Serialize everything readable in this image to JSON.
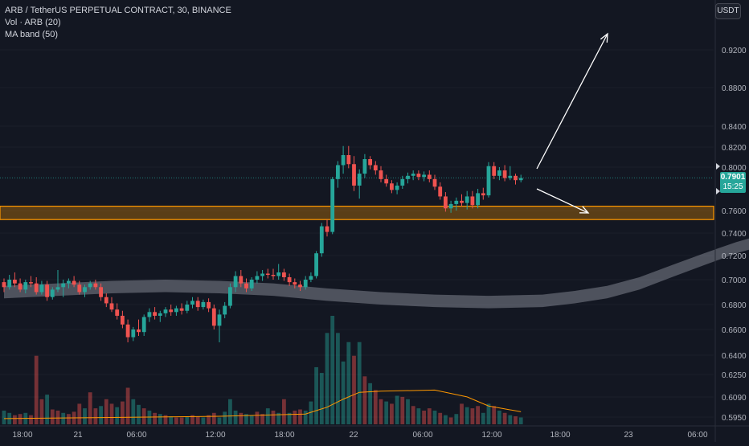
{
  "legend": {
    "symbol": "ARB / TetherUS PERPETUAL CONTRACT, 30, BINANCE",
    "vol": "Vol · ARB (20)",
    "ma_band": "MA band (50)"
  },
  "currency_button": "USDT",
  "last_price": {
    "value": "0.7901",
    "countdown": "15:25"
  },
  "colors": {
    "background": "#131722",
    "up": "#26a69a",
    "down": "#ef5350",
    "zone": "#ff9800",
    "ma_band": "#b0b3bd",
    "vol_ma": "#ff9800"
  },
  "chart_data": {
    "type": "candlestick",
    "y_ticks": [
      "0.9200",
      "0.8800",
      "0.8400",
      "0.8200",
      "0.8000",
      "0.7600",
      "0.7400",
      "0.7200",
      "0.7000",
      "0.6800",
      "0.6600",
      "0.6400",
      "0.6250",
      "0.6090",
      "0.5950"
    ],
    "x_ticks": [
      "18:00",
      "21",
      "06:00",
      "12:00",
      "18:00",
      "22",
      "06:00",
      "12:00",
      "18:00",
      "23",
      "06:00"
    ],
    "support_zone": [
      0.752,
      0.764
    ],
    "ma_band_points": [
      [
        0,
        0.69
      ],
      [
        10,
        0.692
      ],
      [
        20,
        0.694
      ],
      [
        30,
        0.695
      ],
      [
        40,
        0.694
      ],
      [
        50,
        0.692
      ],
      [
        60,
        0.688
      ],
      [
        70,
        0.685
      ],
      [
        80,
        0.683
      ],
      [
        90,
        0.682
      ],
      [
        100,
        0.683
      ],
      [
        106,
        0.686
      ],
      [
        112,
        0.69
      ],
      [
        118,
        0.697
      ],
      [
        124,
        0.707
      ],
      [
        130,
        0.717
      ],
      [
        136,
        0.727
      ],
      [
        142,
        0.735
      ],
      [
        148,
        0.741
      ],
      [
        154,
        0.745
      ],
      [
        160,
        0.748
      ],
      [
        166,
        0.752
      ],
      [
        170,
        0.755
      ],
      [
        174,
        0.76
      ],
      [
        178,
        0.764
      ]
    ],
    "ma_band_width": 0.01,
    "candles": [
      {
        "i": 0,
        "o": 0.698,
        "h": 0.701,
        "l": 0.69,
        "c": 0.694
      },
      {
        "i": 1,
        "o": 0.694,
        "h": 0.704,
        "l": 0.692,
        "c": 0.7
      },
      {
        "i": 2,
        "o": 0.7,
        "h": 0.706,
        "l": 0.694,
        "c": 0.697
      },
      {
        "i": 3,
        "o": 0.697,
        "h": 0.701,
        "l": 0.69,
        "c": 0.692
      },
      {
        "i": 4,
        "o": 0.692,
        "h": 0.7,
        "l": 0.689,
        "c": 0.698
      },
      {
        "i": 5,
        "o": 0.698,
        "h": 0.703,
        "l": 0.694,
        "c": 0.697
      },
      {
        "i": 6,
        "o": 0.697,
        "h": 0.702,
        "l": 0.688,
        "c": 0.69
      },
      {
        "i": 7,
        "o": 0.69,
        "h": 0.699,
        "l": 0.688,
        "c": 0.696
      },
      {
        "i": 8,
        "o": 0.696,
        "h": 0.699,
        "l": 0.683,
        "c": 0.686
      },
      {
        "i": 9,
        "o": 0.686,
        "h": 0.694,
        "l": 0.684,
        "c": 0.692
      },
      {
        "i": 10,
        "o": 0.692,
        "h": 0.708,
        "l": 0.69,
        "c": 0.694
      },
      {
        "i": 11,
        "o": 0.694,
        "h": 0.7,
        "l": 0.686,
        "c": 0.697
      },
      {
        "i": 12,
        "o": 0.697,
        "h": 0.701,
        "l": 0.693,
        "c": 0.699
      },
      {
        "i": 13,
        "o": 0.699,
        "h": 0.703,
        "l": 0.694,
        "c": 0.696
      },
      {
        "i": 14,
        "o": 0.696,
        "h": 0.699,
        "l": 0.688,
        "c": 0.69
      },
      {
        "i": 15,
        "o": 0.69,
        "h": 0.696,
        "l": 0.686,
        "c": 0.694
      },
      {
        "i": 16,
        "o": 0.694,
        "h": 0.699,
        "l": 0.692,
        "c": 0.697
      },
      {
        "i": 17,
        "o": 0.697,
        "h": 0.7,
        "l": 0.692,
        "c": 0.694
      },
      {
        "i": 18,
        "o": 0.694,
        "h": 0.697,
        "l": 0.683,
        "c": 0.686
      },
      {
        "i": 19,
        "o": 0.686,
        "h": 0.689,
        "l": 0.678,
        "c": 0.681
      },
      {
        "i": 20,
        "o": 0.681,
        "h": 0.686,
        "l": 0.674,
        "c": 0.676
      },
      {
        "i": 21,
        "o": 0.676,
        "h": 0.681,
        "l": 0.668,
        "c": 0.671
      },
      {
        "i": 22,
        "o": 0.671,
        "h": 0.675,
        "l": 0.661,
        "c": 0.664
      },
      {
        "i": 23,
        "o": 0.664,
        "h": 0.668,
        "l": 0.65,
        "c": 0.654
      },
      {
        "i": 24,
        "o": 0.654,
        "h": 0.662,
        "l": 0.651,
        "c": 0.66
      },
      {
        "i": 25,
        "o": 0.66,
        "h": 0.668,
        "l": 0.655,
        "c": 0.658
      },
      {
        "i": 26,
        "o": 0.658,
        "h": 0.672,
        "l": 0.655,
        "c": 0.67
      },
      {
        "i": 27,
        "o": 0.67,
        "h": 0.677,
        "l": 0.666,
        "c": 0.674
      },
      {
        "i": 28,
        "o": 0.674,
        "h": 0.678,
        "l": 0.668,
        "c": 0.671
      },
      {
        "i": 29,
        "o": 0.671,
        "h": 0.675,
        "l": 0.666,
        "c": 0.673
      },
      {
        "i": 30,
        "o": 0.673,
        "h": 0.678,
        "l": 0.67,
        "c": 0.676
      },
      {
        "i": 31,
        "o": 0.676,
        "h": 0.68,
        "l": 0.671,
        "c": 0.674
      },
      {
        "i": 32,
        "o": 0.674,
        "h": 0.679,
        "l": 0.671,
        "c": 0.677
      },
      {
        "i": 33,
        "o": 0.677,
        "h": 0.681,
        "l": 0.672,
        "c": 0.675
      },
      {
        "i": 34,
        "o": 0.675,
        "h": 0.683,
        "l": 0.673,
        "c": 0.68
      },
      {
        "i": 35,
        "o": 0.68,
        "h": 0.686,
        "l": 0.677,
        "c": 0.683
      },
      {
        "i": 36,
        "o": 0.683,
        "h": 0.686,
        "l": 0.675,
        "c": 0.678
      },
      {
        "i": 37,
        "o": 0.678,
        "h": 0.684,
        "l": 0.676,
        "c": 0.682
      },
      {
        "i": 38,
        "o": 0.682,
        "h": 0.685,
        "l": 0.674,
        "c": 0.677
      },
      {
        "i": 39,
        "o": 0.677,
        "h": 0.68,
        "l": 0.66,
        "c": 0.663
      },
      {
        "i": 40,
        "o": 0.663,
        "h": 0.676,
        "l": 0.65,
        "c": 0.672
      },
      {
        "i": 41,
        "o": 0.672,
        "h": 0.682,
        "l": 0.669,
        "c": 0.679
      },
      {
        "i": 42,
        "o": 0.679,
        "h": 0.697,
        "l": 0.677,
        "c": 0.694
      },
      {
        "i": 43,
        "o": 0.694,
        "h": 0.707,
        "l": 0.69,
        "c": 0.703
      },
      {
        "i": 44,
        "o": 0.703,
        "h": 0.708,
        "l": 0.694,
        "c": 0.697
      },
      {
        "i": 45,
        "o": 0.697,
        "h": 0.701,
        "l": 0.69,
        "c": 0.693
      },
      {
        "i": 46,
        "o": 0.693,
        "h": 0.702,
        "l": 0.691,
        "c": 0.7
      },
      {
        "i": 47,
        "o": 0.7,
        "h": 0.707,
        "l": 0.697,
        "c": 0.703
      },
      {
        "i": 48,
        "o": 0.703,
        "h": 0.708,
        "l": 0.699,
        "c": 0.705
      },
      {
        "i": 49,
        "o": 0.705,
        "h": 0.709,
        "l": 0.701,
        "c": 0.704
      },
      {
        "i": 50,
        "o": 0.704,
        "h": 0.709,
        "l": 0.7,
        "c": 0.703
      },
      {
        "i": 51,
        "o": 0.703,
        "h": 0.713,
        "l": 0.7,
        "c": 0.706
      },
      {
        "i": 52,
        "o": 0.706,
        "h": 0.709,
        "l": 0.699,
        "c": 0.702
      },
      {
        "i": 53,
        "o": 0.702,
        "h": 0.705,
        "l": 0.695,
        "c": 0.698
      },
      {
        "i": 54,
        "o": 0.698,
        "h": 0.701,
        "l": 0.693,
        "c": 0.696
      },
      {
        "i": 55,
        "o": 0.696,
        "h": 0.699,
        "l": 0.691,
        "c": 0.694
      },
      {
        "i": 56,
        "o": 0.694,
        "h": 0.703,
        "l": 0.692,
        "c": 0.7
      },
      {
        "i": 57,
        "o": 0.7,
        "h": 0.706,
        "l": 0.698,
        "c": 0.703
      },
      {
        "i": 58,
        "o": 0.703,
        "h": 0.724,
        "l": 0.701,
        "c": 0.722
      },
      {
        "i": 59,
        "o": 0.722,
        "h": 0.749,
        "l": 0.719,
        "c": 0.746
      },
      {
        "i": 60,
        "o": 0.746,
        "h": 0.752,
        "l": 0.737,
        "c": 0.741
      },
      {
        "i": 61,
        "o": 0.741,
        "h": 0.791,
        "l": 0.739,
        "c": 0.789
      },
      {
        "i": 62,
        "o": 0.789,
        "h": 0.806,
        "l": 0.781,
        "c": 0.802
      },
      {
        "i": 63,
        "o": 0.802,
        "h": 0.821,
        "l": 0.794,
        "c": 0.812
      },
      {
        "i": 64,
        "o": 0.812,
        "h": 0.821,
        "l": 0.799,
        "c": 0.803
      },
      {
        "i": 65,
        "o": 0.803,
        "h": 0.811,
        "l": 0.778,
        "c": 0.783
      },
      {
        "i": 66,
        "o": 0.783,
        "h": 0.798,
        "l": 0.771,
        "c": 0.794
      },
      {
        "i": 67,
        "o": 0.794,
        "h": 0.813,
        "l": 0.79,
        "c": 0.808
      },
      {
        "i": 68,
        "o": 0.808,
        "h": 0.811,
        "l": 0.798,
        "c": 0.802
      },
      {
        "i": 69,
        "o": 0.802,
        "h": 0.806,
        "l": 0.793,
        "c": 0.797
      },
      {
        "i": 70,
        "o": 0.797,
        "h": 0.801,
        "l": 0.786,
        "c": 0.789
      },
      {
        "i": 71,
        "o": 0.789,
        "h": 0.793,
        "l": 0.782,
        "c": 0.785
      },
      {
        "i": 72,
        "o": 0.785,
        "h": 0.788,
        "l": 0.776,
        "c": 0.779
      },
      {
        "i": 73,
        "o": 0.779,
        "h": 0.786,
        "l": 0.775,
        "c": 0.783
      },
      {
        "i": 74,
        "o": 0.783,
        "h": 0.792,
        "l": 0.78,
        "c": 0.789
      },
      {
        "i": 75,
        "o": 0.789,
        "h": 0.795,
        "l": 0.785,
        "c": 0.792
      },
      {
        "i": 76,
        "o": 0.792,
        "h": 0.797,
        "l": 0.788,
        "c": 0.794
      },
      {
        "i": 77,
        "o": 0.794,
        "h": 0.797,
        "l": 0.788,
        "c": 0.791
      },
      {
        "i": 78,
        "o": 0.791,
        "h": 0.796,
        "l": 0.787,
        "c": 0.793
      },
      {
        "i": 79,
        "o": 0.793,
        "h": 0.797,
        "l": 0.786,
        "c": 0.789
      },
      {
        "i": 80,
        "o": 0.789,
        "h": 0.793,
        "l": 0.779,
        "c": 0.782
      },
      {
        "i": 81,
        "o": 0.782,
        "h": 0.786,
        "l": 0.77,
        "c": 0.773
      },
      {
        "i": 82,
        "o": 0.773,
        "h": 0.777,
        "l": 0.759,
        "c": 0.762
      },
      {
        "i": 83,
        "o": 0.762,
        "h": 0.769,
        "l": 0.758,
        "c": 0.766
      },
      {
        "i": 84,
        "o": 0.766,
        "h": 0.772,
        "l": 0.76,
        "c": 0.769
      },
      {
        "i": 85,
        "o": 0.769,
        "h": 0.775,
        "l": 0.764,
        "c": 0.767
      },
      {
        "i": 86,
        "o": 0.767,
        "h": 0.778,
        "l": 0.761,
        "c": 0.773
      },
      {
        "i": 87,
        "o": 0.773,
        "h": 0.778,
        "l": 0.762,
        "c": 0.765
      },
      {
        "i": 88,
        "o": 0.765,
        "h": 0.78,
        "l": 0.762,
        "c": 0.776
      },
      {
        "i": 89,
        "o": 0.776,
        "h": 0.781,
        "l": 0.77,
        "c": 0.774
      },
      {
        "i": 90,
        "o": 0.774,
        "h": 0.805,
        "l": 0.772,
        "c": 0.801
      },
      {
        "i": 91,
        "o": 0.801,
        "h": 0.805,
        "l": 0.789,
        "c": 0.792
      },
      {
        "i": 92,
        "o": 0.792,
        "h": 0.8,
        "l": 0.788,
        "c": 0.797
      },
      {
        "i": 93,
        "o": 0.797,
        "h": 0.802,
        "l": 0.787,
        "c": 0.79
      },
      {
        "i": 94,
        "o": 0.79,
        "h": 0.801,
        "l": 0.788,
        "c": 0.792
      },
      {
        "i": 95,
        "o": 0.792,
        "h": 0.794,
        "l": 0.784,
        "c": 0.788
      },
      {
        "i": 96,
        "o": 0.788,
        "h": 0.793,
        "l": 0.786,
        "c": 0.79
      }
    ],
    "volumes": [
      [
        0,
        1,
        12
      ],
      [
        1,
        1,
        10
      ],
      [
        2,
        0,
        8
      ],
      [
        3,
        0,
        9
      ],
      [
        4,
        1,
        10
      ],
      [
        5,
        0,
        8
      ],
      [
        6,
        0,
        60
      ],
      [
        7,
        0,
        22
      ],
      [
        8,
        1,
        26
      ],
      [
        9,
        0,
        13
      ],
      [
        10,
        0,
        12
      ],
      [
        11,
        1,
        10
      ],
      [
        12,
        0,
        9
      ],
      [
        13,
        0,
        11
      ],
      [
        14,
        0,
        18
      ],
      [
        15,
        1,
        14
      ],
      [
        16,
        0,
        28
      ],
      [
        17,
        0,
        14
      ],
      [
        18,
        1,
        16
      ],
      [
        19,
        0,
        22
      ],
      [
        20,
        0,
        18
      ],
      [
        21,
        1,
        15
      ],
      [
        22,
        0,
        20
      ],
      [
        23,
        0,
        32
      ],
      [
        24,
        1,
        22
      ],
      [
        25,
        1,
        17
      ],
      [
        26,
        0,
        14
      ],
      [
        27,
        1,
        12
      ],
      [
        28,
        0,
        10
      ],
      [
        29,
        1,
        9
      ],
      [
        30,
        0,
        8
      ],
      [
        31,
        1,
        7
      ],
      [
        32,
        0,
        6
      ],
      [
        33,
        0,
        6
      ],
      [
        34,
        1,
        7
      ],
      [
        35,
        0,
        8
      ],
      [
        36,
        0,
        7
      ],
      [
        37,
        1,
        6
      ],
      [
        38,
        0,
        8
      ],
      [
        39,
        0,
        10
      ],
      [
        40,
        1,
        6
      ],
      [
        41,
        1,
        11
      ],
      [
        42,
        1,
        22
      ],
      [
        43,
        1,
        12
      ],
      [
        44,
        0,
        10
      ],
      [
        45,
        1,
        9
      ],
      [
        46,
        1,
        8
      ],
      [
        47,
        0,
        11
      ],
      [
        48,
        0,
        9
      ],
      [
        49,
        1,
        14
      ],
      [
        50,
        0,
        12
      ],
      [
        51,
        1,
        10
      ],
      [
        52,
        0,
        22
      ],
      [
        53,
        1,
        10
      ],
      [
        54,
        0,
        12
      ],
      [
        55,
        0,
        13
      ],
      [
        56,
        1,
        12
      ],
      [
        57,
        1,
        20
      ],
      [
        58,
        1,
        50
      ],
      [
        59,
        1,
        45
      ],
      [
        60,
        1,
        80
      ],
      [
        61,
        1,
        95
      ],
      [
        62,
        1,
        80
      ],
      [
        63,
        1,
        55
      ],
      [
        64,
        1,
        72
      ],
      [
        65,
        0,
        60
      ],
      [
        66,
        1,
        72
      ],
      [
        67,
        0,
        42
      ],
      [
        68,
        1,
        36
      ],
      [
        69,
        0,
        30
      ],
      [
        70,
        0,
        22
      ],
      [
        71,
        1,
        20
      ],
      [
        72,
        0,
        18
      ],
      [
        73,
        1,
        25
      ],
      [
        74,
        0,
        24
      ],
      [
        75,
        1,
        22
      ],
      [
        76,
        0,
        16
      ],
      [
        77,
        1,
        14
      ],
      [
        78,
        0,
        12
      ],
      [
        79,
        0,
        14
      ],
      [
        80,
        1,
        12
      ],
      [
        81,
        0,
        10
      ],
      [
        82,
        1,
        8
      ],
      [
        83,
        0,
        6
      ],
      [
        84,
        1,
        9
      ],
      [
        85,
        0,
        18
      ],
      [
        86,
        1,
        15
      ],
      [
        87,
        0,
        14
      ],
      [
        88,
        0,
        16
      ],
      [
        89,
        1,
        10
      ],
      [
        90,
        1,
        18
      ],
      [
        91,
        0,
        16
      ],
      [
        92,
        1,
        12
      ],
      [
        93,
        0,
        10
      ],
      [
        94,
        1,
        8
      ],
      [
        95,
        0,
        7
      ],
      [
        96,
        1,
        6
      ]
    ],
    "vol_ma_points": [
      [
        0,
        5
      ],
      [
        20,
        6
      ],
      [
        40,
        7
      ],
      [
        56,
        9
      ],
      [
        60,
        15
      ],
      [
        63,
        22
      ],
      [
        66,
        28
      ],
      [
        70,
        29
      ],
      [
        80,
        30
      ],
      [
        86,
        24
      ],
      [
        90,
        16
      ],
      [
        96,
        11
      ]
    ]
  }
}
